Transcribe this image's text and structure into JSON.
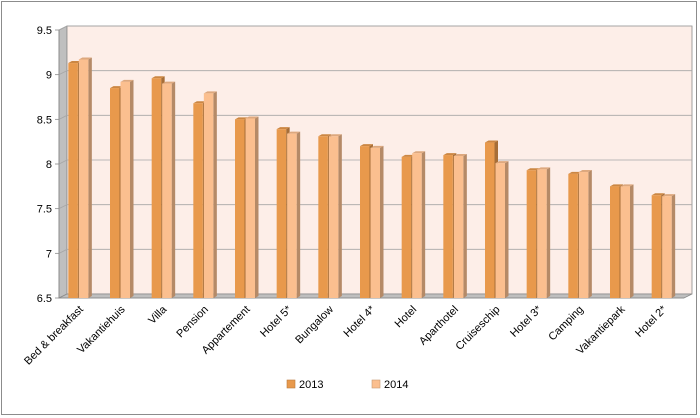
{
  "chart_data": {
    "type": "bar",
    "title": "",
    "xlabel": "",
    "ylabel": "",
    "categories": [
      "Bed & breakfast",
      "Vakantiehuis",
      "Villa",
      "Pension",
      "Appartement",
      "Hotel 5*",
      "Bungalow",
      "Hotel 4*",
      "Hotel",
      "Aparthotel",
      "Cruiseschip",
      "Hotel 3*",
      "Camping",
      "Vakantiepark",
      "Hotel 2*"
    ],
    "series": [
      {
        "name": "2013",
        "color": "#e8994c",
        "values": [
          9.13,
          8.85,
          8.96,
          8.68,
          8.5,
          8.39,
          8.31,
          8.2,
          8.08,
          8.1,
          8.24,
          7.93,
          7.89,
          7.75,
          7.65
        ]
      },
      {
        "name": "2014",
        "color": "#fbbf8f",
        "values": [
          9.17,
          8.92,
          8.9,
          8.79,
          8.51,
          8.34,
          8.31,
          8.18,
          8.12,
          8.09,
          8.01,
          7.94,
          7.91,
          7.75,
          7.64
        ]
      }
    ],
    "ylim": [
      6.5,
      9.5
    ],
    "yticks": [
      "6.5",
      "7",
      "7.5",
      "8",
      "8.5",
      "9",
      "9.5"
    ],
    "grid": true,
    "legend_position": "bottom",
    "plot_background": "#fdeee8",
    "wall_color": "#bfbfbf"
  }
}
